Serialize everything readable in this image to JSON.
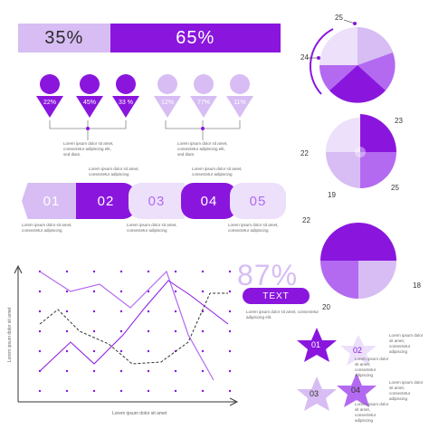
{
  "percent_bar": {
    "left": "35%",
    "right": "65%"
  },
  "people_left": [
    "22%",
    "45%",
    "33 %"
  ],
  "people_right": [
    "12%",
    "77%",
    "11%"
  ],
  "note_text": "Lorem ipsum dolor sit amet, consectetur adipiscing elit, sed diam.",
  "note_short": "Lorem ipsum dolor sit amet, consectetur adipiscing",
  "steps": [
    "01",
    "02",
    "03",
    "04",
    "05"
  ],
  "big_percent": "87%",
  "text_pill": "TEXT",
  "text_note": "Lorem ipsum dolor sit amet, consectetur adipiscing elit.",
  "chart_axis_x": "Lorem ipsum dolor sit amet",
  "chart_axis_y": "Lorem ipsum dolor sit amet",
  "pie1_labels": [
    "25",
    "24"
  ],
  "pie2_labels": [
    "23",
    "22",
    "19",
    "25"
  ],
  "pie3_labels": [
    "22",
    "18",
    "20"
  ],
  "stars": [
    "01",
    "02",
    "03",
    "04"
  ],
  "colors": {
    "dark": "#8a16de",
    "mid": "#b36af0",
    "light": "#d7bdf3",
    "pale": "#ece0fb"
  }
}
